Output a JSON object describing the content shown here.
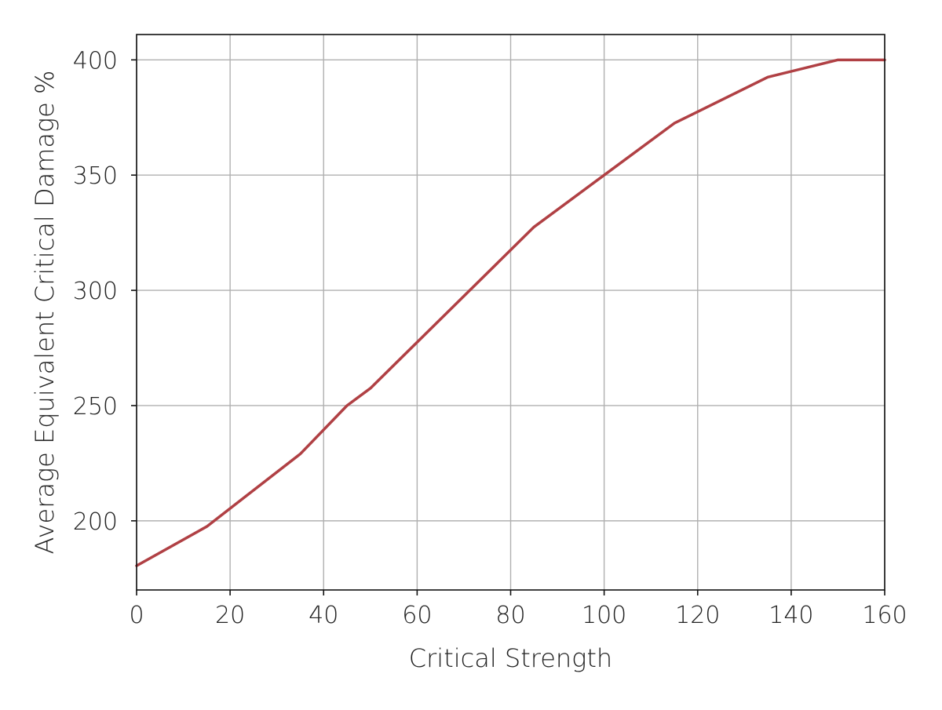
{
  "chart_data": {
    "type": "line",
    "title": "",
    "xlabel": "Critical Strength",
    "ylabel": "Average Equivalent Critical Damage %",
    "xlim": [
      0,
      160
    ],
    "ylim": [
      170,
      411
    ],
    "xticks": [
      0,
      20,
      40,
      60,
      80,
      100,
      120,
      140,
      160
    ],
    "yticks": [
      200,
      250,
      300,
      350,
      400
    ],
    "grid": true,
    "legend": "none",
    "series": [
      {
        "color": "#b04044",
        "x": [
          0,
          15,
          35,
          45,
          50,
          85,
          100,
          115,
          135,
          150,
          160
        ],
        "y": [
          180.5,
          197.5,
          229,
          250,
          257.5,
          327.5,
          350,
          372.5,
          392.5,
          400,
          400
        ]
      }
    ]
  }
}
